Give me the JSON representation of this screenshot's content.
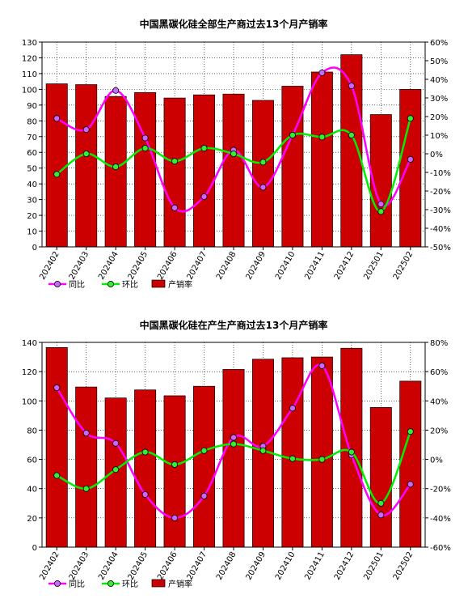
{
  "chart_data": [
    {
      "type": "bar",
      "title": "中国黑碳化硅全部生产商过去13个月产销率",
      "categories": [
        "202402",
        "202403",
        "202404",
        "202405",
        "202406",
        "202407",
        "202408",
        "202409",
        "202410",
        "202411",
        "202412",
        "202501",
        "202502"
      ],
      "y_left": {
        "min": 0,
        "max": 130,
        "step": 10,
        "ticks": [
          "0",
          "10",
          "20",
          "30",
          "40",
          "50",
          "60",
          "70",
          "80",
          "90",
          "100",
          "110",
          "120",
          "130"
        ]
      },
      "y_right": {
        "min": -50,
        "max": 60,
        "step": 10,
        "ticks": [
          "-50%",
          "-40%",
          "-30%",
          "-20%",
          "-10%",
          "0%",
          "10%",
          "20%",
          "30%",
          "40%",
          "50%",
          "60%"
        ]
      },
      "series": [
        {
          "name": "产销率",
          "type": "bar",
          "axis": "left",
          "color": "#cc0000",
          "values": [
            103.5,
            103,
            95.5,
            98,
            94.5,
            96.5,
            97,
            93,
            102,
            111,
            122,
            84,
            100
          ]
        },
        {
          "name": "同比",
          "type": "line",
          "axis": "right",
          "color": "#ff00ff",
          "marker": "#cc66ff",
          "values": [
            19,
            13,
            34,
            8.5,
            -29,
            -23,
            2,
            -18,
            10,
            43.5,
            36.5,
            -27,
            -3
          ]
        },
        {
          "name": "环比",
          "type": "line",
          "axis": "right",
          "color": "#00ee00",
          "marker": "#33ee33",
          "values": [
            -11,
            0,
            -7,
            3,
            -4,
            3,
            0,
            -4.5,
            10,
            9,
            10,
            -31,
            19
          ]
        }
      ],
      "legend": [
        "同比",
        "环比",
        "产销率"
      ],
      "legend_position": "bottom-left",
      "grid": true
    },
    {
      "type": "bar",
      "title": "中国黑碳化硅在产生产商过去13个月产销率",
      "categories": [
        "202402",
        "202403",
        "202404",
        "202405",
        "202406",
        "202407",
        "202408",
        "202409",
        "202410",
        "202411",
        "202412",
        "202501",
        "202502"
      ],
      "y_left": {
        "min": 0,
        "max": 140,
        "step": 20,
        "ticks": [
          "0",
          "20",
          "40",
          "60",
          "80",
          "100",
          "120",
          "140"
        ]
      },
      "y_right": {
        "min": -60,
        "max": 80,
        "step": 20,
        "ticks": [
          "-60%",
          "-40%",
          "-20%",
          "0%",
          "20%",
          "40%",
          "60%",
          "80%"
        ]
      },
      "series": [
        {
          "name": "产销率",
          "type": "bar",
          "axis": "left",
          "color": "#cc0000",
          "values": [
            136.5,
            109.5,
            102,
            107.5,
            103.5,
            110,
            121.5,
            128.5,
            129.5,
            130,
            136,
            95.5,
            113.5
          ]
        },
        {
          "name": "同比",
          "type": "line",
          "axis": "right",
          "color": "#ff00ff",
          "marker": "#cc66ff",
          "values": [
            49,
            18,
            11,
            -24,
            -40,
            -25,
            15,
            9,
            35,
            64,
            3,
            -38,
            -17
          ]
        },
        {
          "name": "环比",
          "type": "line",
          "axis": "right",
          "color": "#00ee00",
          "marker": "#33ee33",
          "values": [
            -11,
            -20,
            -7,
            5,
            -3.5,
            6,
            10.5,
            6,
            0.5,
            0,
            5,
            -30,
            19
          ]
        }
      ],
      "legend": [
        "同比",
        "环比",
        "产销率"
      ],
      "legend_position": "bottom-left",
      "grid": true
    }
  ]
}
